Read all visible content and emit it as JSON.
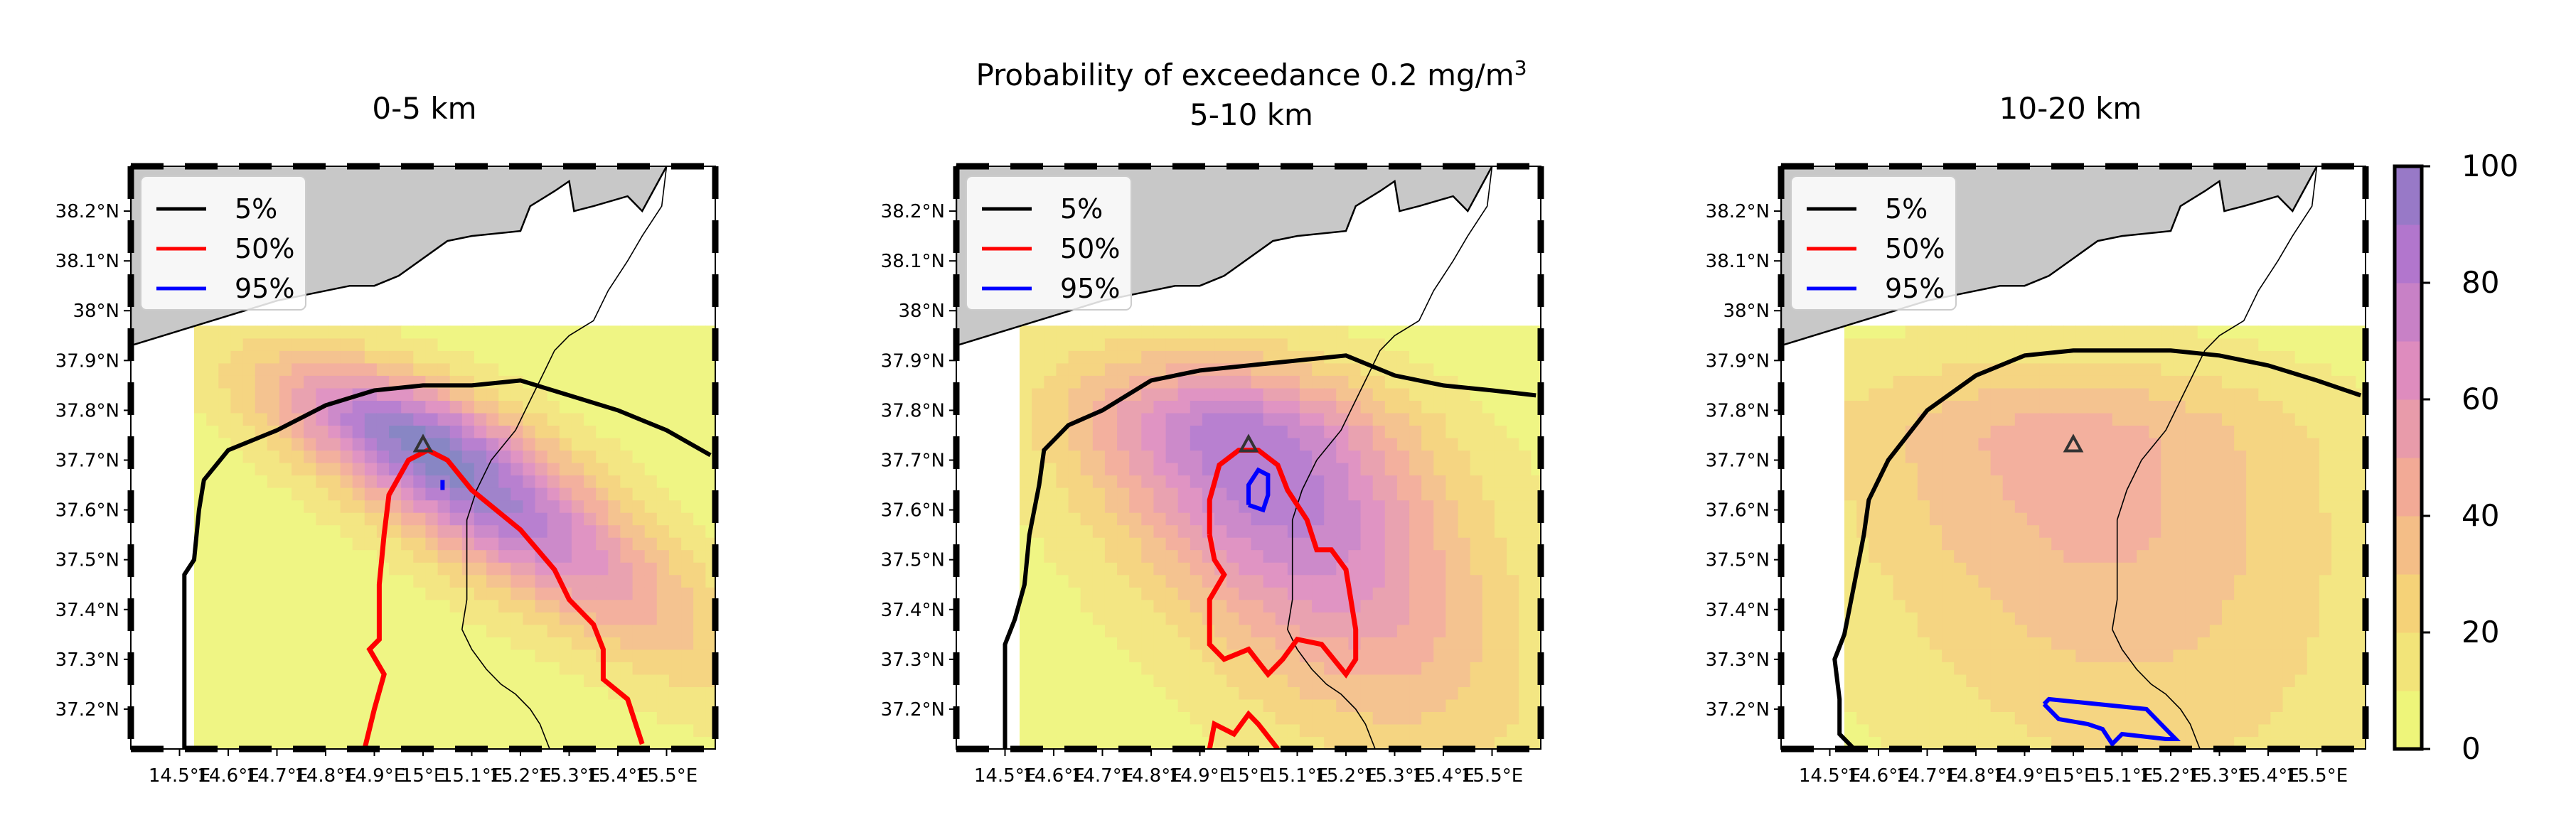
{
  "figure": {
    "title_line1": "Probability of exceedance 0.2 mg/m",
    "title_sup": "3",
    "title_line2": "5-10 km"
  },
  "colors": {
    "land": "#c8c8c8",
    "coast": "#000000",
    "contour_5": "#000000",
    "contour_50": "#ff0000",
    "contour_95": "#0000ff",
    "colormap_low": "#eef57a",
    "colormap_high": "#7e7cc0",
    "vent_marker": "#333333"
  },
  "chart_data": [
    {
      "type": "heatmap",
      "title": "0-5 km",
      "xlim": [
        14.4,
        15.6
      ],
      "ylim": [
        37.12,
        38.29
      ],
      "xticks": [
        14.5,
        14.6,
        14.7,
        14.8,
        14.9,
        15.0,
        15.1,
        15.2,
        15.3,
        15.4,
        15.5
      ],
      "xtick_labels": [
        "14.5°E",
        "14.6°E",
        "14.7°E",
        "14.8°E",
        "14.9°E",
        "15°E",
        "15.1°E",
        "15.2°E",
        "15.3°E",
        "15.4°E",
        "15.5°E"
      ],
      "yticks": [
        37.2,
        37.3,
        37.4,
        37.5,
        37.6,
        37.7,
        37.8,
        37.9,
        38.0,
        38.1,
        38.2
      ],
      "ytick_labels": [
        "37.2°N",
        "37.3°N",
        "37.4°N",
        "37.5°N",
        "37.6°N",
        "37.7°N",
        "37.8°N",
        "37.9°N",
        "38°N",
        "38.1°N",
        "38.2°N"
      ],
      "source": [
        15.0,
        37.73
      ],
      "field": {
        "sx": 0.23,
        "sy": 0.35,
        "peak": 100,
        "shift_per_deg": 1.2
      },
      "legend": [
        "5%",
        "50%",
        "95%"
      ],
      "contours": {
        "5": [
          [
            14.51,
            37.12
          ],
          [
            14.51,
            37.47
          ],
          [
            14.53,
            37.5
          ],
          [
            14.54,
            37.6
          ],
          [
            14.55,
            37.66
          ],
          [
            14.6,
            37.72
          ],
          [
            14.7,
            37.76
          ],
          [
            14.8,
            37.81
          ],
          [
            14.9,
            37.84
          ],
          [
            15.0,
            37.85
          ],
          [
            15.1,
            37.85
          ],
          [
            15.2,
            37.86
          ],
          [
            15.3,
            37.83
          ],
          [
            15.4,
            37.8
          ],
          [
            15.5,
            37.76
          ],
          [
            15.59,
            37.71
          ]
        ],
        "50": [
          [
            14.88,
            37.12
          ],
          [
            14.9,
            37.2
          ],
          [
            14.92,
            37.27
          ],
          [
            14.89,
            37.32
          ],
          [
            14.91,
            37.34
          ],
          [
            14.91,
            37.45
          ],
          [
            14.92,
            37.55
          ],
          [
            14.93,
            37.63
          ],
          [
            14.97,
            37.7
          ],
          [
            15.01,
            37.72
          ],
          [
            15.05,
            37.7
          ],
          [
            15.1,
            37.64
          ],
          [
            15.2,
            37.56
          ],
          [
            15.27,
            37.48
          ],
          [
            15.3,
            37.42
          ],
          [
            15.35,
            37.37
          ],
          [
            15.37,
            37.32
          ],
          [
            15.37,
            37.26
          ],
          [
            15.42,
            37.22
          ],
          [
            15.45,
            37.13
          ]
        ],
        "95": [
          [
            15.04,
            37.64
          ],
          [
            15.04,
            37.66
          ]
        ]
      }
    },
    {
      "type": "heatmap",
      "title": "",
      "xlim": [
        14.4,
        15.6
      ],
      "ylim": [
        37.12,
        38.29
      ],
      "xticks": [
        14.5,
        14.6,
        14.7,
        14.8,
        14.9,
        15.0,
        15.1,
        15.2,
        15.3,
        15.4,
        15.5
      ],
      "xtick_labels": [
        "14.5°E",
        "14.6°E",
        "14.7°E",
        "14.8°E",
        "14.9°E",
        "15°E",
        "15.1°E",
        "15.2°E",
        "15.3°E",
        "15.4°E",
        "15.5°E"
      ],
      "yticks": [
        37.2,
        37.3,
        37.4,
        37.5,
        37.6,
        37.7,
        37.8,
        37.9,
        38.0,
        38.1,
        38.2
      ],
      "ytick_labels": [
        "37.2°N",
        "37.3°N",
        "37.4°N",
        "37.5°N",
        "37.6°N",
        "37.7°N",
        "37.8°N",
        "37.9°N",
        "38°N",
        "38.1°N",
        "38.2°N"
      ],
      "source": [
        15.0,
        37.73
      ],
      "field": {
        "sx": 0.33,
        "sy": 0.5,
        "peak": 85,
        "shift_per_deg": 0.55
      },
      "legend": [
        "5%",
        "50%",
        "95%"
      ],
      "contours": {
        "5": [
          [
            14.5,
            37.12
          ],
          [
            14.5,
            37.33
          ],
          [
            14.52,
            37.38
          ],
          [
            14.54,
            37.45
          ],
          [
            14.55,
            37.55
          ],
          [
            14.57,
            37.65
          ],
          [
            14.58,
            37.72
          ],
          [
            14.63,
            37.77
          ],
          [
            14.7,
            37.8
          ],
          [
            14.8,
            37.86
          ],
          [
            14.9,
            37.88
          ],
          [
            15.0,
            37.89
          ],
          [
            15.1,
            37.9
          ],
          [
            15.2,
            37.91
          ],
          [
            15.3,
            37.87
          ],
          [
            15.4,
            37.85
          ],
          [
            15.5,
            37.84
          ],
          [
            15.59,
            37.83
          ]
        ],
        "50": [
          [
            14.92,
            37.55
          ],
          [
            14.92,
            37.62
          ],
          [
            14.94,
            37.69
          ],
          [
            14.98,
            37.72
          ],
          [
            15.02,
            37.72
          ],
          [
            15.06,
            37.69
          ],
          [
            15.08,
            37.64
          ],
          [
            15.12,
            37.58
          ],
          [
            15.14,
            37.52
          ],
          [
            15.17,
            37.52
          ],
          [
            15.2,
            37.48
          ],
          [
            15.21,
            37.42
          ],
          [
            15.22,
            37.36
          ],
          [
            15.22,
            37.3
          ],
          [
            15.2,
            37.27
          ],
          [
            15.15,
            37.33
          ],
          [
            15.1,
            37.34
          ],
          [
            15.07,
            37.3
          ],
          [
            15.04,
            37.27
          ],
          [
            15.0,
            37.32
          ],
          [
            14.95,
            37.3
          ],
          [
            14.92,
            37.33
          ],
          [
            14.92,
            37.42
          ],
          [
            14.95,
            37.47
          ],
          [
            14.93,
            37.5
          ],
          [
            14.92,
            37.55
          ]
        ],
        "50b": [
          [
            14.92,
            37.12
          ],
          [
            14.93,
            37.17
          ],
          [
            14.97,
            37.15
          ],
          [
            15.0,
            37.19
          ],
          [
            15.02,
            37.17
          ],
          [
            15.06,
            37.12
          ]
        ],
        "95": [
          [
            15.0,
            37.61
          ],
          [
            15.03,
            37.6
          ],
          [
            15.04,
            37.63
          ],
          [
            15.04,
            37.67
          ],
          [
            15.02,
            37.68
          ],
          [
            15.0,
            37.65
          ],
          [
            15.0,
            37.61
          ]
        ]
      }
    },
    {
      "type": "heatmap",
      "title": "10-20 km",
      "xlim": [
        14.4,
        15.6
      ],
      "ylim": [
        37.12,
        38.29
      ],
      "xticks": [
        14.5,
        14.6,
        14.7,
        14.8,
        14.9,
        15.0,
        15.1,
        15.2,
        15.3,
        15.4,
        15.5
      ],
      "xtick_labels": [
        "14.5°E",
        "14.6°E",
        "14.7°E",
        "14.8°E",
        "14.9°E",
        "15°E",
        "15.1°E",
        "15.2°E",
        "15.3°E",
        "15.4°E",
        "15.5°E"
      ],
      "yticks": [
        37.2,
        37.3,
        37.4,
        37.5,
        37.6,
        37.7,
        37.8,
        37.9,
        38.0,
        38.1,
        38.2
      ],
      "ytick_labels": [
        "37.2°N",
        "37.3°N",
        "37.4°N",
        "37.5°N",
        "37.6°N",
        "37.7°N",
        "37.8°N",
        "37.9°N",
        "38°N",
        "38.1°N",
        "38.2°N"
      ],
      "source": [
        15.0,
        37.73
      ],
      "field": {
        "sx": 0.5,
        "sy": 0.65,
        "peak": 40,
        "shift_per_deg": 0.25
      },
      "legend": [
        "5%",
        "50%",
        "95%"
      ],
      "contours": {
        "5": [
          [
            14.55,
            37.12
          ],
          [
            14.52,
            37.15
          ],
          [
            14.52,
            37.22
          ],
          [
            14.51,
            37.3
          ],
          [
            14.53,
            37.35
          ],
          [
            14.55,
            37.45
          ],
          [
            14.57,
            37.55
          ],
          [
            14.58,
            37.62
          ],
          [
            14.62,
            37.7
          ],
          [
            14.7,
            37.8
          ],
          [
            14.8,
            37.87
          ],
          [
            14.9,
            37.91
          ],
          [
            15.0,
            37.92
          ],
          [
            15.1,
            37.92
          ],
          [
            15.2,
            37.92
          ],
          [
            15.3,
            37.91
          ],
          [
            15.4,
            37.89
          ],
          [
            15.5,
            37.86
          ],
          [
            15.59,
            37.83
          ]
        ],
        "95": [
          [
            14.94,
            37.21
          ],
          [
            14.97,
            37.18
          ],
          [
            15.03,
            37.17
          ],
          [
            15.06,
            37.16
          ],
          [
            15.08,
            37.13
          ],
          [
            15.1,
            37.15
          ],
          [
            15.19,
            37.14
          ],
          [
            15.21,
            37.14
          ],
          [
            15.18,
            37.17
          ],
          [
            15.15,
            37.2
          ],
          [
            15.05,
            37.21
          ],
          [
            14.95,
            37.22
          ],
          [
            14.94,
            37.21
          ]
        ]
      }
    }
  ],
  "colorbar": {
    "ticks": [
      0,
      20,
      40,
      60,
      80,
      100
    ],
    "tick_labels": [
      "0",
      "20",
      "40",
      "60",
      "80",
      "100"
    ],
    "range": [
      0,
      100
    ],
    "levels": [
      0,
      10,
      20,
      30,
      40,
      50,
      60,
      70,
      80,
      90,
      100
    ]
  }
}
